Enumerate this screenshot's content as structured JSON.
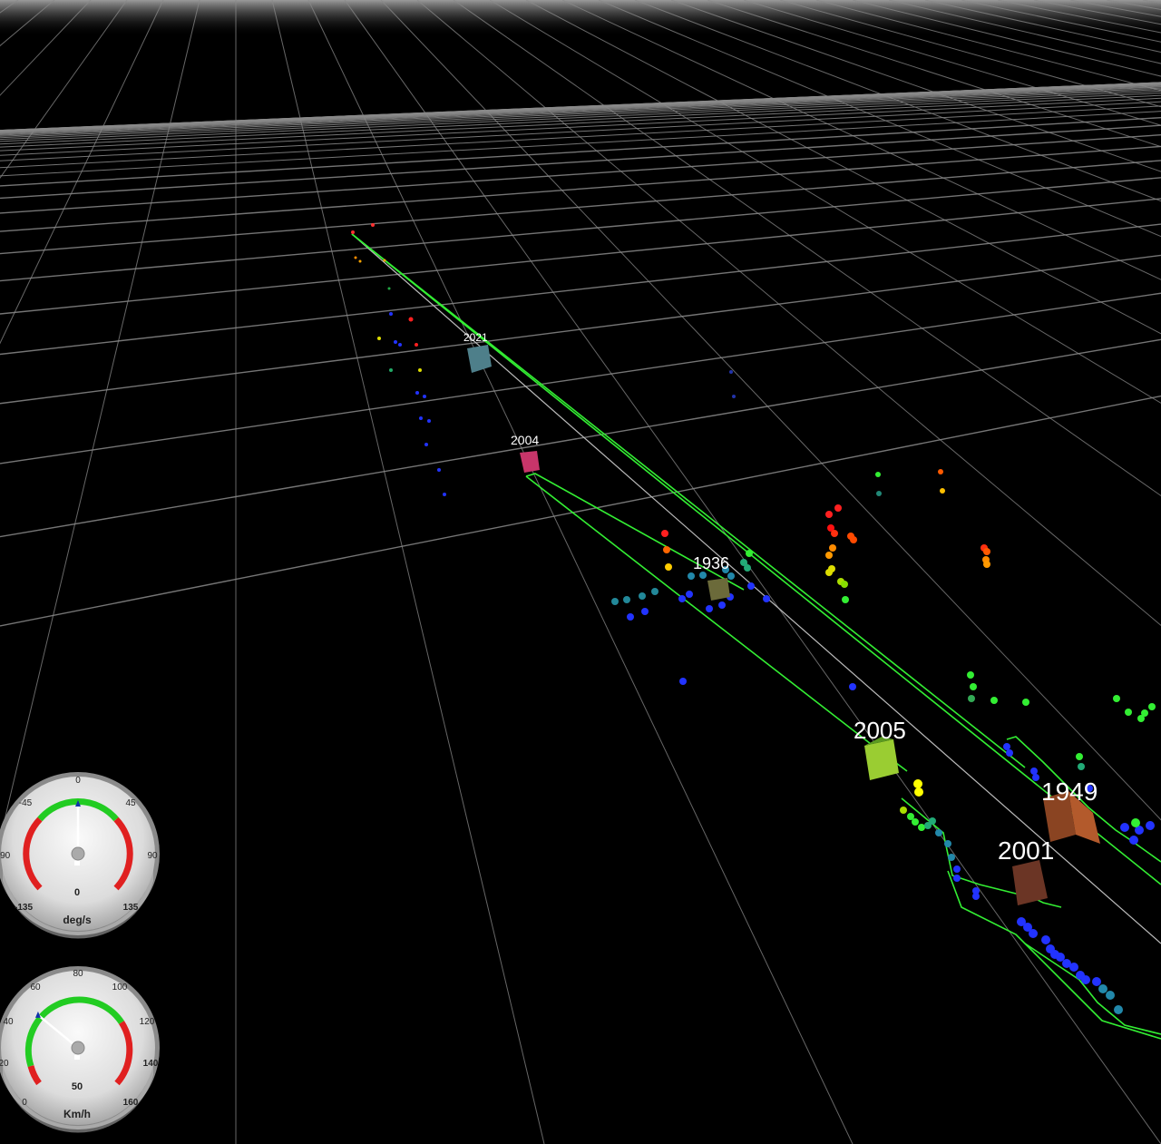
{
  "objects": [
    {
      "id_label": "2021",
      "color": "#4e7f8a"
    },
    {
      "id_label": "2004",
      "color": "#c8356a"
    },
    {
      "id_label": "1936",
      "color": "#6b6a3a"
    },
    {
      "id_label": "2005",
      "color": "#9acd32"
    },
    {
      "id_label": "1949",
      "color": "#b35a2c"
    },
    {
      "id_label": "2001",
      "color": "#6b3525"
    }
  ],
  "gauges": {
    "yaw_rate": {
      "unit": "deg/s",
      "ticks": [
        "-135",
        "-90",
        "-45",
        "0",
        "45",
        "90",
        "135"
      ],
      "center_value": "0",
      "value": 0
    },
    "speed": {
      "unit": "Km/h",
      "ticks": [
        "0",
        "20",
        "40",
        "60",
        "80",
        "100",
        "120",
        "140",
        "160"
      ],
      "center_value": "50",
      "value": 50
    }
  },
  "colors": {
    "background": "#000000",
    "grid": "#8a8a8a",
    "path": "#33ee33",
    "gauge_ok": "#22cc22",
    "gauge_warn": "#e02020",
    "needle": "#ffffff"
  }
}
